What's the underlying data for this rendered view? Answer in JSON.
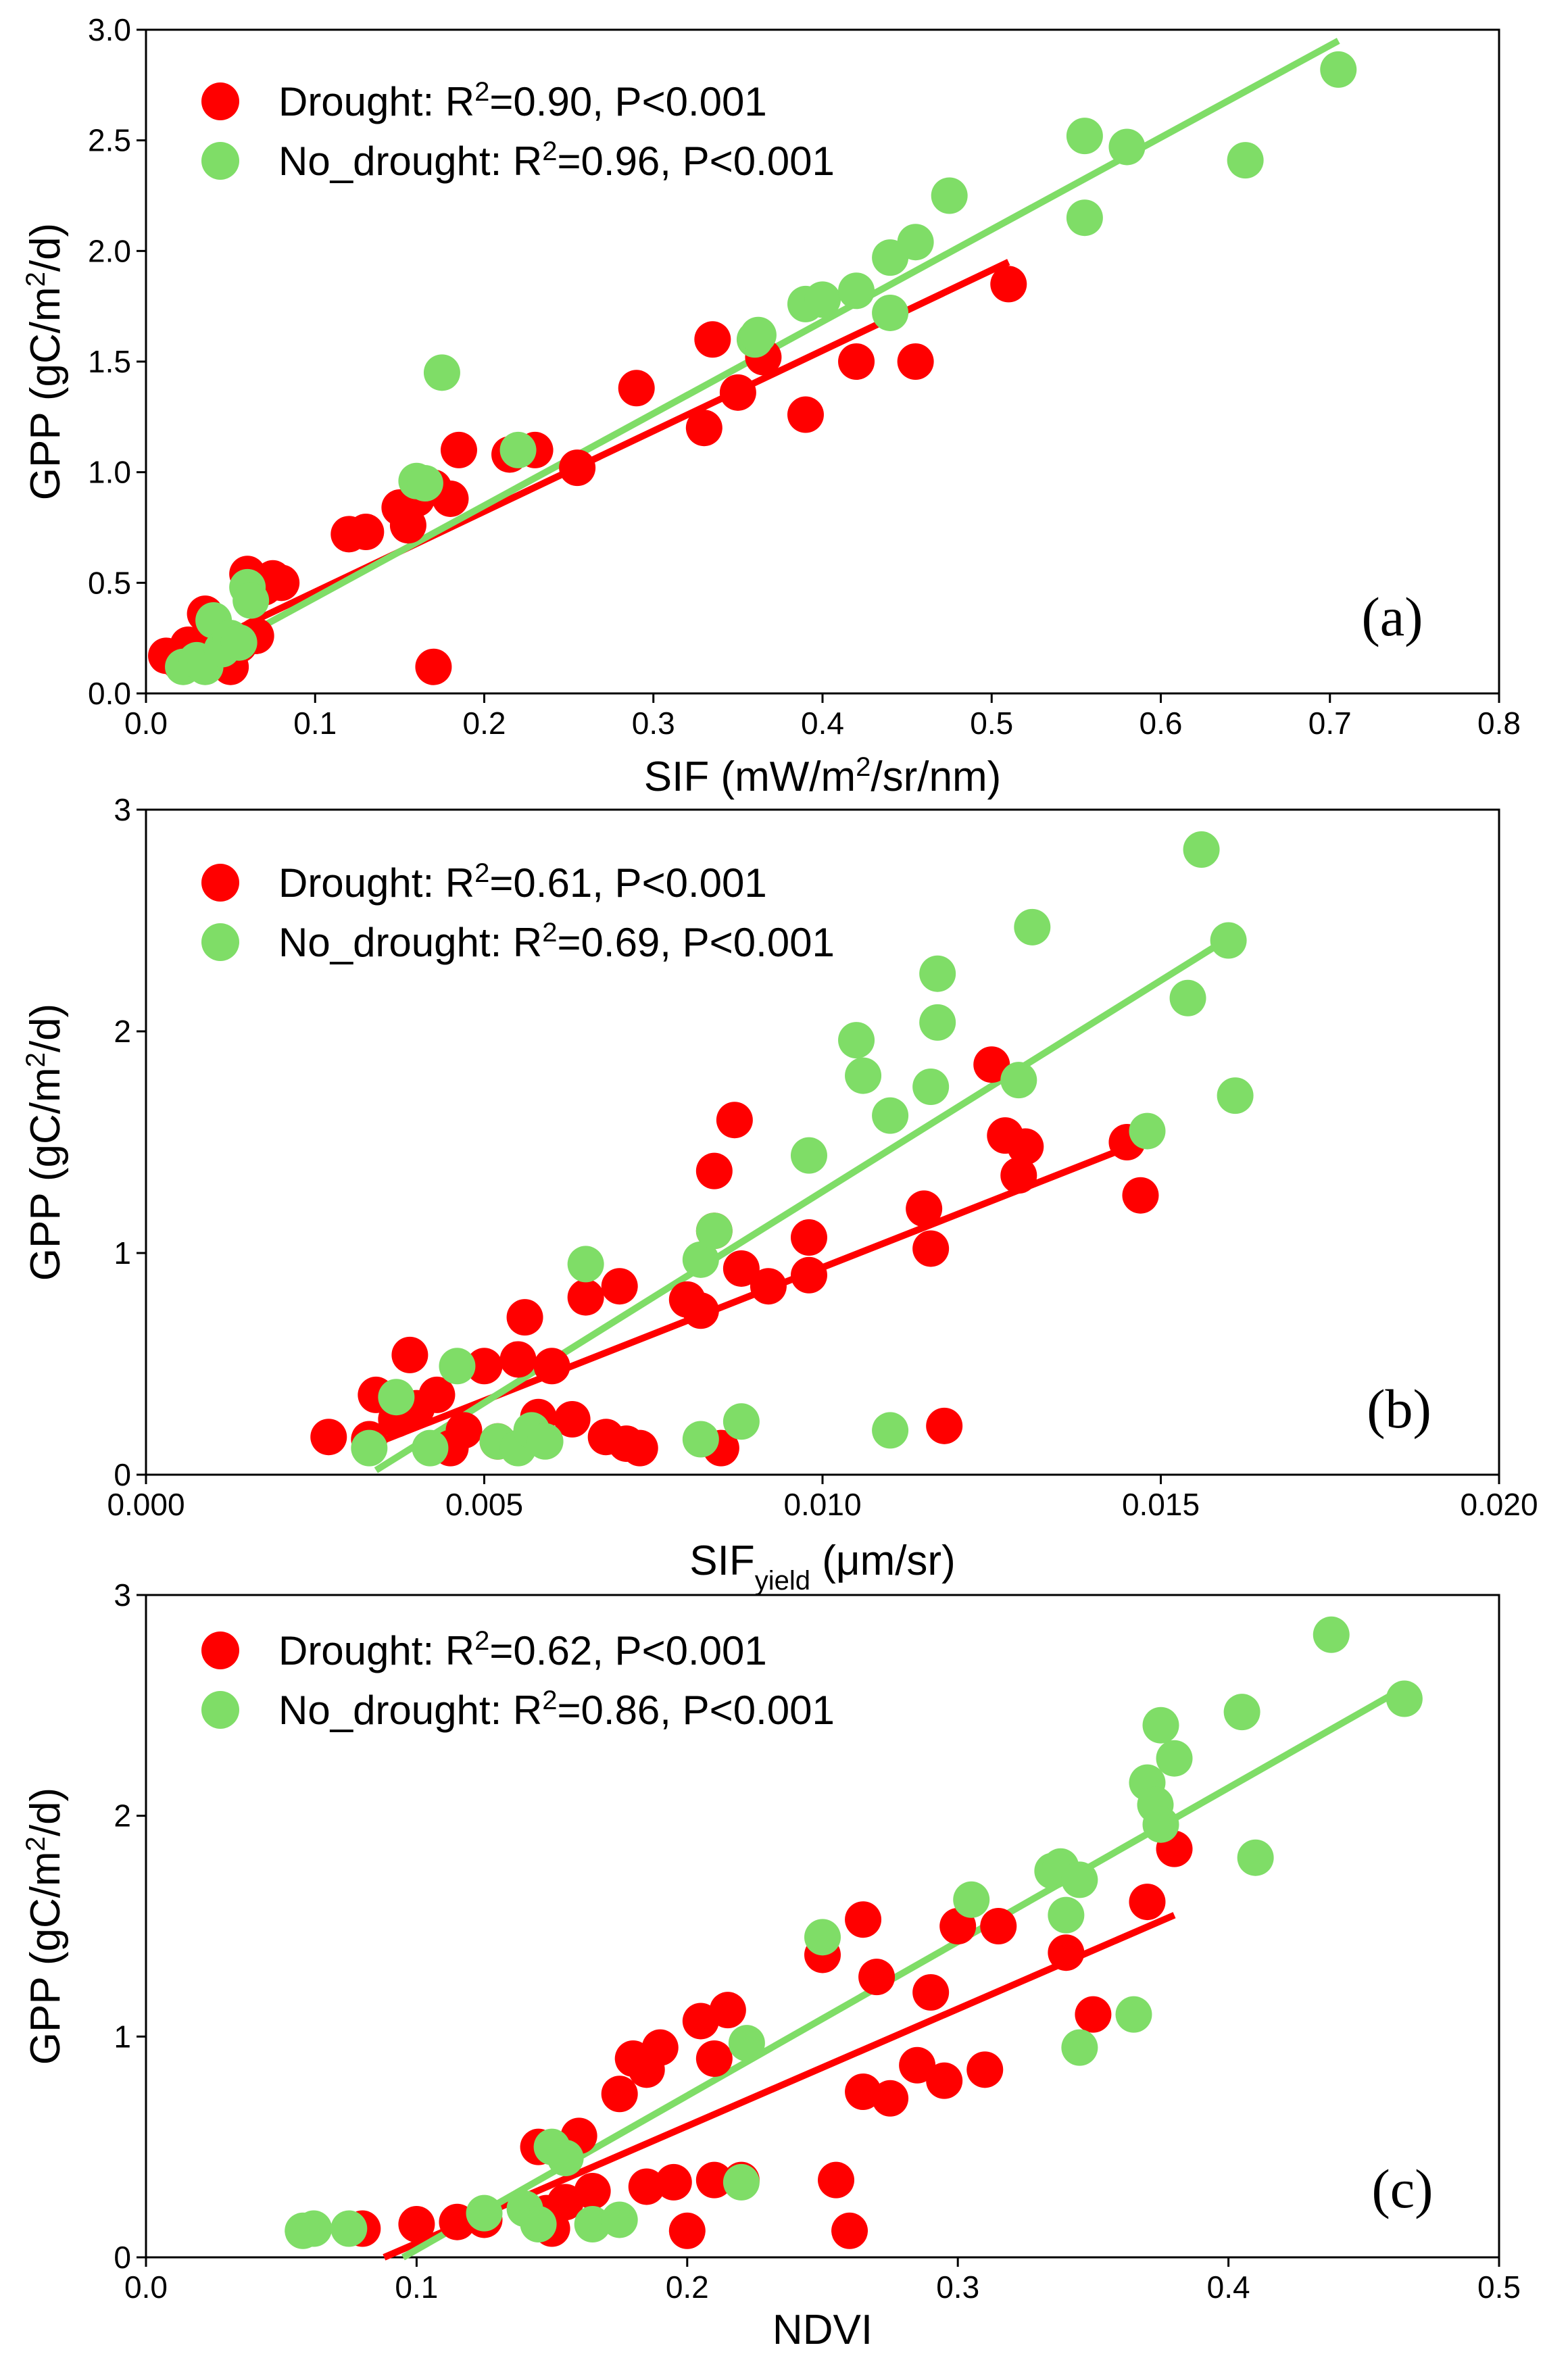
{
  "colors": {
    "drought": "#ff0000",
    "no_drought": "#7fdd67",
    "axis": "#000000"
  },
  "chart_data": [
    {
      "type": "scatter",
      "panel_label": "(a)",
      "xlabel": {
        "main": "SIF (mW/m",
        "sup": "2",
        "rest": "/sr/nm)"
      },
      "ylabel": {
        "main": "GPP (gC/m",
        "sup": "2",
        "rest": "/d)"
      },
      "xlim": [
        0,
        0.8
      ],
      "ylim": [
        0,
        3.0
      ],
      "xticks": [
        0,
        0.1,
        0.2,
        0.3,
        0.4,
        0.5,
        0.6,
        0.7,
        0.8
      ],
      "xtick_labels": [
        "0.0",
        "0.1",
        "0.2",
        "0.3",
        "0.4",
        "0.5",
        "0.6",
        "0.7",
        "0.8"
      ],
      "yticks": [
        0,
        0.5,
        1.0,
        1.5,
        2.0,
        2.5,
        3.0
      ],
      "ytick_labels": [
        "0.0",
        "0.5",
        "1.0",
        "1.5",
        "2.0",
        "2.5",
        "3.0"
      ],
      "legend_placement": "top-left",
      "series": [
        {
          "name": "Drought",
          "legend": {
            "prefix": "Drought: R",
            "sup": "2",
            "suffix": "=0.90, P<0.001"
          },
          "fit": [
            [
              0.015,
              0.15
            ],
            [
              0.51,
              1.95
            ]
          ],
          "points": [
            [
              0.012,
              0.17
            ],
            [
              0.02,
              0.14
            ],
            [
              0.025,
              0.22
            ],
            [
              0.03,
              0.15
            ],
            [
              0.035,
              0.36
            ],
            [
              0.04,
              0.3
            ],
            [
              0.045,
              0.2
            ],
            [
              0.05,
              0.12
            ],
            [
              0.055,
              0.22
            ],
            [
              0.06,
              0.54
            ],
            [
              0.065,
              0.26
            ],
            [
              0.07,
              0.48
            ],
            [
              0.075,
              0.52
            ],
            [
              0.08,
              0.5
            ],
            [
              0.12,
              0.72
            ],
            [
              0.13,
              0.73
            ],
            [
              0.15,
              0.84
            ],
            [
              0.155,
              0.76
            ],
            [
              0.16,
              0.88
            ],
            [
              0.17,
              0.93
            ],
            [
              0.18,
              0.88
            ],
            [
              0.185,
              1.1
            ],
            [
              0.215,
              1.08
            ],
            [
              0.23,
              1.1
            ],
            [
              0.255,
              1.02
            ],
            [
              0.29,
              1.38
            ],
            [
              0.33,
              1.2
            ],
            [
              0.335,
              1.6
            ],
            [
              0.35,
              1.36
            ],
            [
              0.365,
              1.52
            ],
            [
              0.39,
              1.26
            ],
            [
              0.42,
              1.5
            ],
            [
              0.455,
              1.5
            ],
            [
              0.51,
              1.85
            ],
            [
              0.17,
              0.12
            ]
          ]
        },
        {
          "name": "No_drought",
          "legend": {
            "prefix": "No_drought: R",
            "sup": "2",
            "suffix": "=0.96, P<0.001"
          },
          "fit": [
            [
              0.02,
              0.1
            ],
            [
              0.705,
              2.95
            ]
          ],
          "points": [
            [
              0.022,
              0.12
            ],
            [
              0.03,
              0.15
            ],
            [
              0.035,
              0.12
            ],
            [
              0.04,
              0.33
            ],
            [
              0.045,
              0.2
            ],
            [
              0.05,
              0.25
            ],
            [
              0.055,
              0.23
            ],
            [
              0.06,
              0.48
            ],
            [
              0.062,
              0.42
            ],
            [
              0.16,
              0.96
            ],
            [
              0.165,
              0.95
            ],
            [
              0.175,
              1.45
            ],
            [
              0.22,
              1.1
            ],
            [
              0.36,
              1.6
            ],
            [
              0.362,
              1.62
            ],
            [
              0.39,
              1.76
            ],
            [
              0.4,
              1.78
            ],
            [
              0.42,
              1.82
            ],
            [
              0.44,
              1.72
            ],
            [
              0.44,
              1.97
            ],
            [
              0.455,
              2.04
            ],
            [
              0.475,
              2.25
            ],
            [
              0.555,
              2.52
            ],
            [
              0.555,
              2.15
            ],
            [
              0.58,
              2.47
            ],
            [
              0.65,
              2.41
            ],
            [
              0.705,
              2.82
            ]
          ]
        }
      ]
    },
    {
      "type": "scatter",
      "panel_label": "(b)",
      "xlabel": {
        "main": "SIF",
        "sub": "yield",
        "rest": " (μm/sr)"
      },
      "ylabel": {
        "main": "GPP (gC/m",
        "sup": "2",
        "rest": "/d)"
      },
      "xlim": [
        0,
        0.02
      ],
      "ylim": [
        0,
        3
      ],
      "xticks": [
        0,
        0.005,
        0.01,
        0.015,
        0.02
      ],
      "xtick_labels": [
        "0.000",
        "0.005",
        "0.010",
        "0.015",
        "0.020"
      ],
      "yticks": [
        0,
        1,
        2,
        3
      ],
      "ytick_labels": [
        "0",
        "1",
        "2",
        "3"
      ],
      "legend_placement": "top-left",
      "series": [
        {
          "name": "Drought",
          "legend": {
            "prefix": "Drought: R",
            "sup": "2",
            "suffix": "=0.61, P<0.001"
          },
          "fit": [
            [
              0.0033,
              0.13
            ],
            [
              0.0147,
              1.5
            ]
          ],
          "points": [
            [
              0.0027,
              0.17
            ],
            [
              0.0033,
              0.16
            ],
            [
              0.0034,
              0.36
            ],
            [
              0.0037,
              0.25
            ],
            [
              0.0039,
              0.54
            ],
            [
              0.004,
              0.3
            ],
            [
              0.0043,
              0.36
            ],
            [
              0.0045,
              0.12
            ],
            [
              0.0047,
              0.2
            ],
            [
              0.005,
              0.49
            ],
            [
              0.0052,
              0.15
            ],
            [
              0.0055,
              0.52
            ],
            [
              0.0056,
              0.71
            ],
            [
              0.0058,
              0.26
            ],
            [
              0.006,
              0.49
            ],
            [
              0.0063,
              0.25
            ],
            [
              0.0065,
              0.8
            ],
            [
              0.0068,
              0.17
            ],
            [
              0.007,
              0.85
            ],
            [
              0.0071,
              0.14
            ],
            [
              0.0073,
              0.12
            ],
            [
              0.008,
              0.79
            ],
            [
              0.0082,
              0.74
            ],
            [
              0.0084,
              1.1
            ],
            [
              0.0084,
              1.37
            ],
            [
              0.0085,
              0.12
            ],
            [
              0.0087,
              1.6
            ],
            [
              0.0088,
              0.93
            ],
            [
              0.0092,
              0.85
            ],
            [
              0.0098,
              0.9
            ],
            [
              0.0098,
              1.07
            ],
            [
              0.0115,
              1.2
            ],
            [
              0.0116,
              1.02
            ],
            [
              0.0118,
              0.22
            ],
            [
              0.0125,
              1.85
            ],
            [
              0.0127,
              1.53
            ],
            [
              0.0129,
              1.35
            ],
            [
              0.013,
              1.48
            ],
            [
              0.0145,
              1.5
            ],
            [
              0.0147,
              1.26
            ]
          ]
        },
        {
          "name": "No_drought",
          "legend": {
            "prefix": "No_drought: R",
            "sup": "2",
            "suffix": "=0.69, P<0.001"
          },
          "fit": [
            [
              0.0034,
              0.02
            ],
            [
              0.016,
              2.42
            ]
          ],
          "points": [
            [
              0.0033,
              0.12
            ],
            [
              0.0037,
              0.35
            ],
            [
              0.0042,
              0.12
            ],
            [
              0.0046,
              0.49
            ],
            [
              0.0052,
              0.15
            ],
            [
              0.0055,
              0.12
            ],
            [
              0.0057,
              0.2
            ],
            [
              0.0059,
              0.15
            ],
            [
              0.0065,
              0.95
            ],
            [
              0.0082,
              0.97
            ],
            [
              0.0082,
              0.16
            ],
            [
              0.0084,
              1.1
            ],
            [
              0.0088,
              0.24
            ],
            [
              0.0098,
              1.44
            ],
            [
              0.0105,
              1.96
            ],
            [
              0.0106,
              1.8
            ],
            [
              0.011,
              1.62
            ],
            [
              0.011,
              0.2
            ],
            [
              0.0116,
              1.75
            ],
            [
              0.0117,
              2.04
            ],
            [
              0.0117,
              2.26
            ],
            [
              0.0129,
              1.78
            ],
            [
              0.0131,
              2.47
            ],
            [
              0.0148,
              1.55
            ],
            [
              0.0154,
              2.15
            ],
            [
              0.0156,
              2.82
            ],
            [
              0.016,
              2.41
            ],
            [
              0.0161,
              1.71
            ]
          ]
        }
      ]
    },
    {
      "type": "scatter",
      "panel_label": "(c)",
      "xlabel": {
        "main": "NDVI"
      },
      "ylabel": {
        "main": "GPP (gC/m",
        "sup": "2",
        "rest": "/d)"
      },
      "xlim": [
        0,
        0.5
      ],
      "ylim": [
        0,
        3
      ],
      "xticks": [
        0,
        0.1,
        0.2,
        0.3,
        0.4,
        0.5
      ],
      "xtick_labels": [
        "0.0",
        "0.1",
        "0.2",
        "0.3",
        "0.4",
        "0.5"
      ],
      "yticks": [
        0,
        1,
        2,
        3
      ],
      "ytick_labels": [
        "0",
        "1",
        "2",
        "3"
      ],
      "legend_placement": "top-left",
      "series": [
        {
          "name": "Drought",
          "legend": {
            "prefix": "Drought: R",
            "sup": "2",
            "suffix": "=0.62, P<0.001"
          },
          "fit": [
            [
              0.088,
              0.0
            ],
            [
              0.38,
              1.55
            ]
          ],
          "points": [
            [
              0.08,
              0.13
            ],
            [
              0.1,
              0.15
            ],
            [
              0.115,
              0.16
            ],
            [
              0.125,
              0.17
            ],
            [
              0.145,
              0.5
            ],
            [
              0.148,
              0.2
            ],
            [
              0.15,
              0.13
            ],
            [
              0.155,
              0.25
            ],
            [
              0.16,
              0.55
            ],
            [
              0.165,
              0.3
            ],
            [
              0.175,
              0.74
            ],
            [
              0.18,
              0.9
            ],
            [
              0.185,
              0.32
            ],
            [
              0.185,
              0.85
            ],
            [
              0.19,
              0.95
            ],
            [
              0.195,
              0.34
            ],
            [
              0.2,
              0.12
            ],
            [
              0.205,
              1.07
            ],
            [
              0.21,
              0.9
            ],
            [
              0.21,
              0.35
            ],
            [
              0.215,
              1.12
            ],
            [
              0.22,
              0.35
            ],
            [
              0.25,
              1.37
            ],
            [
              0.255,
              0.35
            ],
            [
              0.26,
              0.12
            ],
            [
              0.265,
              1.53
            ],
            [
              0.265,
              0.75
            ],
            [
              0.27,
              1.27
            ],
            [
              0.275,
              0.72
            ],
            [
              0.285,
              0.87
            ],
            [
              0.29,
              1.2
            ],
            [
              0.295,
              0.8
            ],
            [
              0.3,
              1.5
            ],
            [
              0.31,
              0.85
            ],
            [
              0.315,
              1.5
            ],
            [
              0.34,
              1.38
            ],
            [
              0.35,
              1.1
            ],
            [
              0.37,
              1.61
            ],
            [
              0.38,
              1.85
            ]
          ]
        },
        {
          "name": "No_drought",
          "legend": {
            "prefix": "No_drought: R",
            "sup": "2",
            "suffix": "=0.86, P<0.001"
          },
          "fit": [
            [
              0.095,
              0.0
            ],
            [
              0.465,
              2.58
            ]
          ],
          "points": [
            [
              0.058,
              0.12
            ],
            [
              0.062,
              0.13
            ],
            [
              0.075,
              0.13
            ],
            [
              0.125,
              0.2
            ],
            [
              0.14,
              0.22
            ],
            [
              0.145,
              0.15
            ],
            [
              0.15,
              0.5
            ],
            [
              0.155,
              0.45
            ],
            [
              0.165,
              0.15
            ],
            [
              0.175,
              0.17
            ],
            [
              0.22,
              0.34
            ],
            [
              0.222,
              0.97
            ],
            [
              0.25,
              1.45
            ],
            [
              0.305,
              1.62
            ],
            [
              0.335,
              1.75
            ],
            [
              0.338,
              1.77
            ],
            [
              0.34,
              1.55
            ],
            [
              0.345,
              1.71
            ],
            [
              0.345,
              0.95
            ],
            [
              0.365,
              1.1
            ],
            [
              0.37,
              2.15
            ],
            [
              0.373,
              2.05
            ],
            [
              0.375,
              1.96
            ],
            [
              0.375,
              2.41
            ],
            [
              0.38,
              2.26
            ],
            [
              0.405,
              2.47
            ],
            [
              0.41,
              1.81
            ],
            [
              0.438,
              2.82
            ],
            [
              0.465,
              2.53
            ]
          ]
        }
      ]
    }
  ]
}
